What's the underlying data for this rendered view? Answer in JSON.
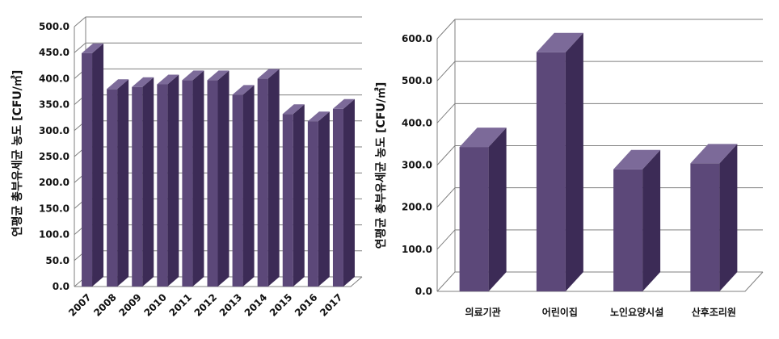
{
  "colors": {
    "front": "#5c4879",
    "side": "#3c2b56",
    "top": "#7c6a99",
    "grid": "#7f7f7f"
  },
  "chart_data": [
    {
      "type": "bar",
      "title": "",
      "xlabel": "",
      "ylabel": "연평균 총부유세균 농도 [CFU/㎥]",
      "categories": [
        "2007",
        "2008",
        "2009",
        "2010",
        "2011",
        "2012",
        "2013",
        "2014",
        "2015",
        "2016",
        "2017"
      ],
      "values": [
        449,
        380,
        384,
        389,
        397,
        397,
        369,
        400,
        332,
        318,
        342
      ],
      "ylim": [
        0,
        500
      ],
      "yticks": [
        "0.0",
        "50.0",
        "100.0",
        "150.0",
        "200.0",
        "250.0",
        "300.0",
        "350.0",
        "400.0",
        "450.0",
        "500.0"
      ],
      "grid": true,
      "legend": "none"
    },
    {
      "type": "bar",
      "title": "",
      "xlabel": "",
      "ylabel": "연평균 총부유세균 농도 [CFU/㎥]",
      "categories": [
        "의료기관",
        "어린이집",
        "노인요양시설",
        "산후조리원"
      ],
      "values": [
        343,
        568,
        290,
        304
      ],
      "ylim": [
        0,
        600
      ],
      "yticks": [
        "0.0",
        "100.0",
        "200.0",
        "300.0",
        "400.0",
        "500.0",
        "600.0"
      ],
      "grid": true,
      "legend": "none"
    }
  ]
}
